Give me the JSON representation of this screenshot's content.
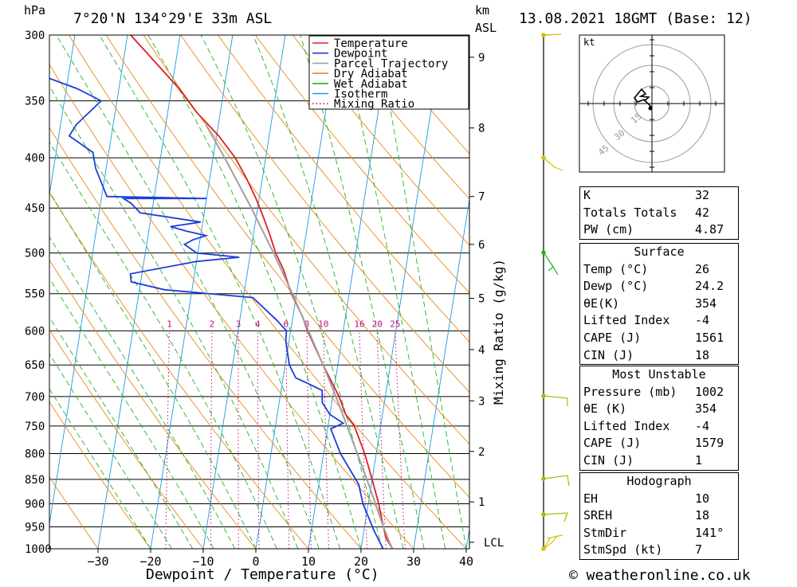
{
  "header": {
    "location": "7°20'N  134°29'E  33m  ASL",
    "datetime": "13.08.2021  18GMT  (Base: 12)",
    "unit_hpa": "hPa",
    "unit_km": "km",
    "unit_asl": "ASL"
  },
  "axes": {
    "xlabel": "Dewpoint / Temperature (°C)",
    "mixing_label": "Mixing Ratio (g/kg)",
    "x_ticks": [
      -30,
      -20,
      -10,
      0,
      10,
      20,
      30,
      40
    ],
    "p_ticks": [
      300,
      350,
      400,
      450,
      500,
      550,
      600,
      650,
      700,
      750,
      800,
      850,
      900,
      950,
      1000
    ],
    "km_ticks": [
      {
        "label": "9",
        "p": 316
      },
      {
        "label": "8",
        "p": 373
      },
      {
        "label": "7",
        "p": 438
      },
      {
        "label": "6",
        "p": 490
      },
      {
        "label": "5",
        "p": 556
      },
      {
        "label": "4",
        "p": 627
      },
      {
        "label": "3",
        "p": 707
      },
      {
        "label": "2",
        "p": 796
      },
      {
        "label": "1",
        "p": 896
      }
    ],
    "lcl_label": "LCL",
    "lcl_p": 985,
    "mixing_ratio_labels": [
      "1",
      "2",
      "3",
      "4",
      "6",
      "8",
      "10",
      "16",
      "20",
      "25"
    ]
  },
  "legend": [
    {
      "label": "Temperature",
      "color": "#e02020",
      "style": "solid"
    },
    {
      "label": "Dewpoint",
      "color": "#1a3ed8",
      "style": "solid"
    },
    {
      "label": "Parcel Trajectory",
      "color": "#a0a0a0",
      "style": "solid"
    },
    {
      "label": "Dry Adiabat",
      "color": "#e88a1a",
      "style": "solid"
    },
    {
      "label": "Wet Adiabat",
      "color": "#22b322",
      "style": "solid"
    },
    {
      "label": "Isotherm",
      "color": "#1a9ae0",
      "style": "solid"
    },
    {
      "label": "Mixing Ratio",
      "color": "#c0107a",
      "style": "dotted"
    }
  ],
  "chart_data": {
    "type": "line",
    "title": "7°20'N  134°29'E  33m  ASL",
    "xlabel": "Dewpoint / Temperature (°C)",
    "ylabel": "hPa",
    "xlim": [
      -40,
      40
    ],
    "ylim": [
      1000,
      300
    ],
    "y_scale": "log",
    "grid": true,
    "series": [
      {
        "name": "Temperature",
        "points": [
          [
            1000,
            26
          ],
          [
            975,
            24.4
          ],
          [
            950,
            23.6
          ],
          [
            925,
            22.8
          ],
          [
            900,
            22.0
          ],
          [
            850,
            20.0
          ],
          [
            800,
            17.8
          ],
          [
            750,
            15.0
          ],
          [
            730,
            13.0
          ],
          [
            700,
            11.2
          ],
          [
            650,
            7.2
          ],
          [
            600,
            3.2
          ],
          [
            580,
            1.8
          ],
          [
            550,
            -1.0
          ],
          [
            520,
            -3.2
          ],
          [
            500,
            -5.2
          ],
          [
            480,
            -6.8
          ],
          [
            460,
            -8.6
          ],
          [
            440,
            -10.6
          ],
          [
            420,
            -13.0
          ],
          [
            400,
            -15.8
          ],
          [
            380,
            -19.6
          ],
          [
            360,
            -24.4
          ],
          [
            340,
            -28.6
          ],
          [
            320,
            -33.8
          ],
          [
            300,
            -39.4
          ]
        ]
      },
      {
        "name": "Dewpoint",
        "points": [
          [
            1000,
            24.2
          ],
          [
            960,
            22.0
          ],
          [
            900,
            19.0
          ],
          [
            860,
            17.6
          ],
          [
            800,
            13.2
          ],
          [
            755,
            10.6
          ],
          [
            745,
            12.8
          ],
          [
            730,
            10.0
          ],
          [
            710,
            8.2
          ],
          [
            690,
            7.8
          ],
          [
            680,
            5.2
          ],
          [
            670,
            2.4
          ],
          [
            650,
            0.8
          ],
          [
            615,
            -0.6
          ],
          [
            600,
            -0.8
          ],
          [
            585,
            -3.0
          ],
          [
            555,
            -8.2
          ],
          [
            545,
            -25.2
          ],
          [
            535,
            -31.8
          ],
          [
            525,
            -32.2
          ],
          [
            510,
            -20.0
          ],
          [
            505,
            -12.0
          ],
          [
            500,
            -20.2
          ],
          [
            490,
            -22.8
          ],
          [
            485,
            -21.4
          ],
          [
            480,
            -19.0
          ],
          [
            475,
            -22.8
          ],
          [
            470,
            -26.0
          ],
          [
            465,
            -20.4
          ],
          [
            455,
            -32.2
          ],
          [
            445,
            -34.2
          ],
          [
            440,
            -35.8
          ],
          [
            440,
            -20.0
          ],
          [
            438,
            -39.0
          ],
          [
            410,
            -42.0
          ],
          [
            395,
            -43.0
          ],
          [
            380,
            -48.0
          ],
          [
            370,
            -47.0
          ],
          [
            350,
            -43.0
          ],
          [
            340,
            -48.0
          ],
          [
            330,
            -55.0
          ],
          [
            310,
            -58.0
          ],
          [
            300,
            -58.5
          ]
        ]
      },
      {
        "name": "Parcel Trajectory",
        "points": [
          [
            1000,
            26.0
          ],
          [
            985,
            25.2
          ],
          [
            950,
            23.6
          ],
          [
            900,
            21.4
          ],
          [
            850,
            19.0
          ],
          [
            800,
            16.4
          ],
          [
            750,
            13.6
          ],
          [
            700,
            10.6
          ],
          [
            650,
            7.2
          ],
          [
            600,
            3.4
          ],
          [
            550,
            -0.8
          ],
          [
            500,
            -5.6
          ],
          [
            450,
            -11.2
          ],
          [
            400,
            -17.8
          ],
          [
            370,
            -22.4
          ]
        ]
      }
    ]
  },
  "hodograph": {
    "unit": "kt",
    "ring_labels": [
      "15",
      "30",
      "45"
    ]
  },
  "indices": {
    "top": [
      {
        "label": "K",
        "value": "32"
      },
      {
        "label": "Totals Totals",
        "value": "42"
      },
      {
        "label": "PW (cm)",
        "value": "4.87"
      }
    ],
    "surface": {
      "title": "Surface",
      "rows": [
        {
          "label": "Temp (°C)",
          "value": "26"
        },
        {
          "label": "Dewp (°C)",
          "value": "24.2"
        },
        {
          "label": "θE(K)",
          "value": "354"
        },
        {
          "label": "Lifted Index",
          "value": "-4"
        },
        {
          "label": "CAPE (J)",
          "value": "1561"
        },
        {
          "label": "CIN (J)",
          "value": "18"
        }
      ]
    },
    "most_unstable": {
      "title": "Most Unstable",
      "rows": [
        {
          "label": "Pressure (mb)",
          "value": "1002"
        },
        {
          "label": "θE (K)",
          "value": "354"
        },
        {
          "label": "Lifted Index",
          "value": "-4"
        },
        {
          "label": "CAPE (J)",
          "value": "1579"
        },
        {
          "label": "CIN (J)",
          "value": "1"
        }
      ]
    },
    "hodograph": {
      "title": "Hodograph",
      "rows": [
        {
          "label": "EH",
          "value": "10"
        },
        {
          "label": "SREH",
          "value": "18"
        },
        {
          "label": "StmDir",
          "value": "141°"
        },
        {
          "label": "StmSpd (kt)",
          "value": "7"
        }
      ]
    }
  },
  "copyright": "© weatheronline.co.uk"
}
